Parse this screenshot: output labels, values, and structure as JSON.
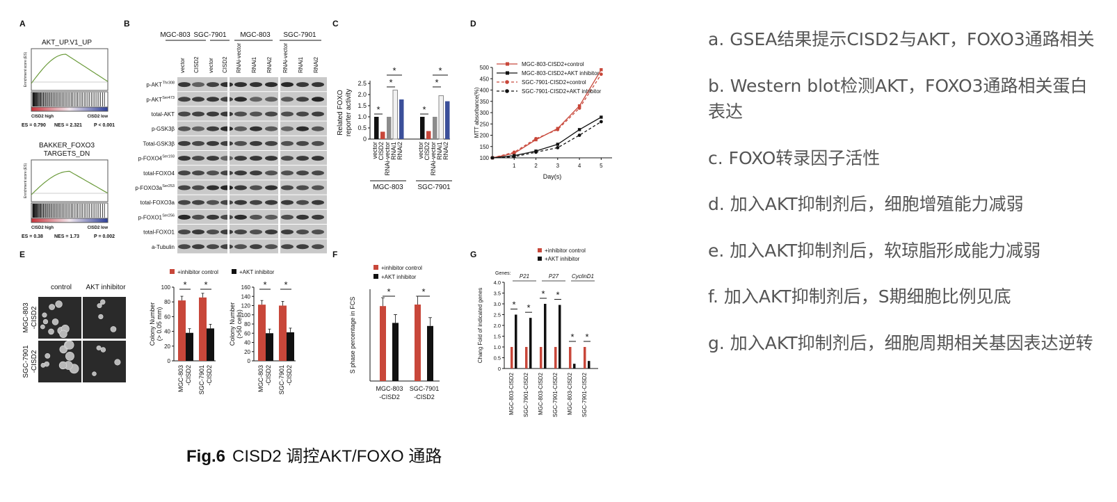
{
  "caption": {
    "fig": "Fig.6",
    "text": "CISD2 调控AKT/FOXO 通路"
  },
  "notes": [
    "a. GSEA结果提示CISD2与AKT，FOXO3通路相关",
    "b. Western blot检测AKT，FOXO3通路相关蛋白表达",
    "c. FOXO转录因子活性",
    "d. 加入AKT抑制剂后，细胞增殖能力减弱",
    "e. 加入AKT抑制剂后，软琼脂形成能力减弱",
    "f.  加入AKT抑制剂后，S期细胞比例见底",
    "g. 加入AKT抑制剂后，细胞周期相关基因表达逆转"
  ],
  "panelA": {
    "letter": "A",
    "plot1": {
      "title": "AKT_UP.V1_UP",
      "ylabel": "Enrichment score (ES)",
      "left": "CISD2 high",
      "right": "CISD2 low",
      "es": "ES = 0.790",
      "nes": "NES = 2.321",
      "p": "P < 0.001"
    },
    "plot2": {
      "title1": "BAKKER_FOXO3",
      "title2": "TARGETS_DN",
      "ylabel": "Enrichment score (ES)",
      "left": "CISD2 high",
      "right": "CISD2 low",
      "es": "ES = 0.38",
      "nes": "NES = 1.73",
      "p": "P = 0.002"
    },
    "color_curve": "#6a9a3a"
  },
  "panelB": {
    "letter": "B",
    "groups": [
      "MGC-803",
      "SGC-7901",
      "MGC-803",
      "SGC-7901"
    ],
    "lanes": [
      "vector",
      "CISD2",
      "vector",
      "CISD2",
      "RNAi-vector",
      "RNAi1",
      "RNAi2",
      "RNAi-vector",
      "RNAi1",
      "RNAi2"
    ],
    "rows": [
      {
        "label": "p-AKT",
        "sup": "Thr308"
      },
      {
        "label": "p-AKT",
        "sup": "Ser473"
      },
      {
        "label": "total-AKT",
        "sup": ""
      },
      {
        "label": "p-GSK3β",
        "sup": ""
      },
      {
        "label": "Total-GSK3β",
        "sup": ""
      },
      {
        "label": "p-FOXO4",
        "sup": "Ser193"
      },
      {
        "label": "total-FOXO4",
        "sup": ""
      },
      {
        "label": "p-FOXO3a",
        "sup": "Ser253"
      },
      {
        "label": "total-FOXO3a",
        "sup": ""
      },
      {
        "label": "p-FOXO1",
        "sup": "Ser256"
      },
      {
        "label": "total-FOXO1",
        "sup": ""
      },
      {
        "label": "a-Tubulin",
        "sup": ""
      }
    ]
  },
  "panelC": {
    "letter": "C",
    "ylabel1": "Related FOXO",
    "ylabel2": "reporter activity",
    "yticks": [
      "0",
      "0.5",
      "1.0",
      "1.5",
      "2.0",
      "2.5"
    ],
    "groups": [
      "MGC-803",
      "SGC-7901"
    ],
    "categories": [
      "vector",
      "CISD2",
      "RNAi-vector",
      "RNAi1",
      "RNAi2"
    ],
    "star": "*"
  },
  "panelD": {
    "letter": "D",
    "ylabel": "MTT absorbance(%)",
    "xlabel": "Day(s)",
    "yticks": [
      "100",
      "150",
      "200",
      "250",
      "300",
      "350",
      "400",
      "450",
      "500"
    ],
    "xticks": [
      "1",
      "2",
      "3",
      "4",
      "5"
    ],
    "legend": [
      "MGC-803-CISD2+control",
      "MGC-803-CISD2+AKT inhibitor",
      "SGC-7901-CISD2+control",
      "SGC-7901-CISD2+AKT inhibitor"
    ]
  },
  "panelE": {
    "letter": "E",
    "col_labels": [
      "control",
      "AKT inhibitor"
    ],
    "row_labels": [
      [
        "MGC-803",
        "-CISD2"
      ],
      [
        "SGC-7901",
        "-CISD2"
      ]
    ],
    "legend": [
      "+inhibitor control",
      "+AKT inhibitor"
    ],
    "chart1": {
      "ylabel1": "Colony Number",
      "ylabel2": "(> 0.05 mm)",
      "yticks": [
        "0",
        "20",
        "40",
        "60",
        "80",
        "100"
      ]
    },
    "chart2": {
      "ylabel1": "Colony Number",
      "ylabel2": "(>50 cells)",
      "yticks": [
        "0",
        "20",
        "40",
        "60",
        "80",
        "100",
        "120",
        "140",
        "160"
      ]
    },
    "xcats": [
      [
        "MGC-803",
        "-CISD2"
      ],
      [
        "SGC-7901",
        "-CISD2"
      ]
    ]
  },
  "panelF": {
    "letter": "F",
    "legend": [
      "+inhibitor control",
      "+AKT inhibitor"
    ],
    "ylabel": "S phase percentage in FCS",
    "xcats": [
      [
        "MGC-803",
        "-CISD2"
      ],
      [
        "SGC-7901",
        "-CISD2"
      ]
    ]
  },
  "panelG": {
    "letter": "G",
    "legend": [
      "+inhibitor control",
      "+AKT inhibitor"
    ],
    "genes_label": "Genes:",
    "genes": [
      "P21",
      "P27",
      "CyclinD1"
    ],
    "ylabel": "Chang Fold of indicated genes",
    "yticks": [
      "0",
      "0.5",
      "1.0",
      "1.5",
      "2.0",
      "2.5",
      "3.0",
      "3.5",
      "4.0"
    ],
    "xcats": [
      "MGC-803-CISD2",
      "SGC-7901-CISD2",
      "MGC-803-CISD2",
      "SGC-7901-CISD2",
      "MGC-803-CISD2",
      "SGC-7901-CISD2"
    ]
  },
  "colors": {
    "red": "#c8473a",
    "black": "#111111",
    "gray": "#8c8c8c",
    "blue": "#3b4f9a",
    "white_bar": "#f2f2f2"
  },
  "chart_data": [
    {
      "panel": "C",
      "type": "bar",
      "categories": [
        "vector",
        "CISD2",
        "RNAi-vector",
        "RNAi1",
        "RNAi2"
      ],
      "series": [
        {
          "name": "MGC-803",
          "values": [
            1.0,
            0.33,
            1.0,
            2.2,
            1.78
          ]
        },
        {
          "name": "SGC-7901",
          "values": [
            1.0,
            0.36,
            1.0,
            1.95,
            1.7
          ]
        }
      ],
      "ylim": [
        0,
        2.5
      ]
    },
    {
      "panel": "D",
      "type": "line",
      "x": [
        0,
        1,
        2,
        3,
        4,
        5
      ],
      "series": [
        {
          "name": "MGC-803-CISD2+control",
          "values": [
            100,
            120,
            180,
            230,
            330,
            490
          ]
        },
        {
          "name": "MGC-803-CISD2+AKT inhibitor",
          "values": [
            100,
            110,
            130,
            160,
            225,
            280
          ]
        },
        {
          "name": "SGC-7901-CISD2+control",
          "values": [
            100,
            125,
            185,
            225,
            320,
            470
          ]
        },
        {
          "name": "SGC-7901-CISD2+AKT inhibitor",
          "values": [
            100,
            105,
            125,
            145,
            200,
            260
          ]
        }
      ],
      "ylim": [
        100,
        500
      ],
      "xlabel": "Day(s)",
      "ylabel": "MTT absorbance(%)"
    },
    {
      "panel": "E1",
      "type": "bar",
      "categories": [
        "MGC-803-CISD2",
        "SGC-7901-CISD2"
      ],
      "series": [
        {
          "name": "+inhibitor control",
          "values": [
            82,
            86
          ]
        },
        {
          "name": "+AKT inhibitor",
          "values": [
            38,
            44
          ]
        }
      ],
      "ylim": [
        0,
        100
      ]
    },
    {
      "panel": "E2",
      "type": "bar",
      "categories": [
        "MGC-803-CISD2",
        "SGC-7901-CISD2"
      ],
      "series": [
        {
          "name": "+inhibitor control",
          "values": [
            122,
            120
          ]
        },
        {
          "name": "+AKT inhibitor",
          "values": [
            60,
            62
          ]
        }
      ],
      "ylim": [
        0,
        160
      ]
    },
    {
      "panel": "F",
      "type": "bar",
      "categories": [
        "MGC-803-CISD2",
        "SGC-7901-CISD2"
      ],
      "series": [
        {
          "name": "+inhibitor control",
          "values": [
            49,
            50
          ]
        },
        {
          "name": "+AKT inhibitor",
          "values": [
            38,
            36
          ]
        }
      ],
      "ylim": [
        0,
        60
      ]
    },
    {
      "panel": "G",
      "type": "bar",
      "categories": [
        "P21 MGC-803-CISD2",
        "P21 SGC-7901-CISD2",
        "P27 MGC-803-CISD2",
        "P27 SGC-7901-CISD2",
        "CyclinD1 MGC-803-CISD2",
        "CyclinD1 SGC-7901-CISD2"
      ],
      "series": [
        {
          "name": "+inhibitor control",
          "values": [
            1.0,
            1.0,
            1.0,
            1.0,
            1.0,
            1.0
          ]
        },
        {
          "name": "+AKT inhibitor",
          "values": [
            2.5,
            2.35,
            3.0,
            2.95,
            0.22,
            0.35
          ]
        }
      ],
      "ylim": [
        0,
        4.0
      ]
    }
  ]
}
